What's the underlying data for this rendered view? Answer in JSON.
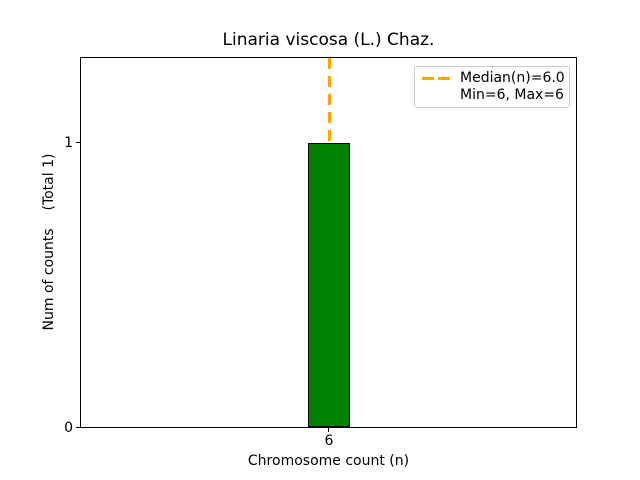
{
  "chart_data": {
    "type": "bar",
    "title": "Linaria viscosa (L.) Chaz.",
    "xlabel": "Chromosome count (n)",
    "ylabel": "Num of counts    (Total 1)",
    "categories": [
      "6"
    ],
    "values": [
      1
    ],
    "total_counts": 1,
    "x_ticks": [
      "6"
    ],
    "y_ticks": [
      "0",
      "1"
    ],
    "ylim": [
      0,
      1.3
    ],
    "grid": false,
    "bar_color": "#008000",
    "bar_edge_color": "#000000",
    "median_line": {
      "value": 6.0,
      "color": "#ffa500",
      "style": "dashed",
      "orientation": "vertical"
    },
    "legend": {
      "position": "upper-right",
      "entries": [
        {
          "label": "Median(n)=6.0",
          "handle": "orange-dashed-line"
        },
        {
          "label": "Min=6, Max=6",
          "handle": "none"
        }
      ]
    }
  }
}
